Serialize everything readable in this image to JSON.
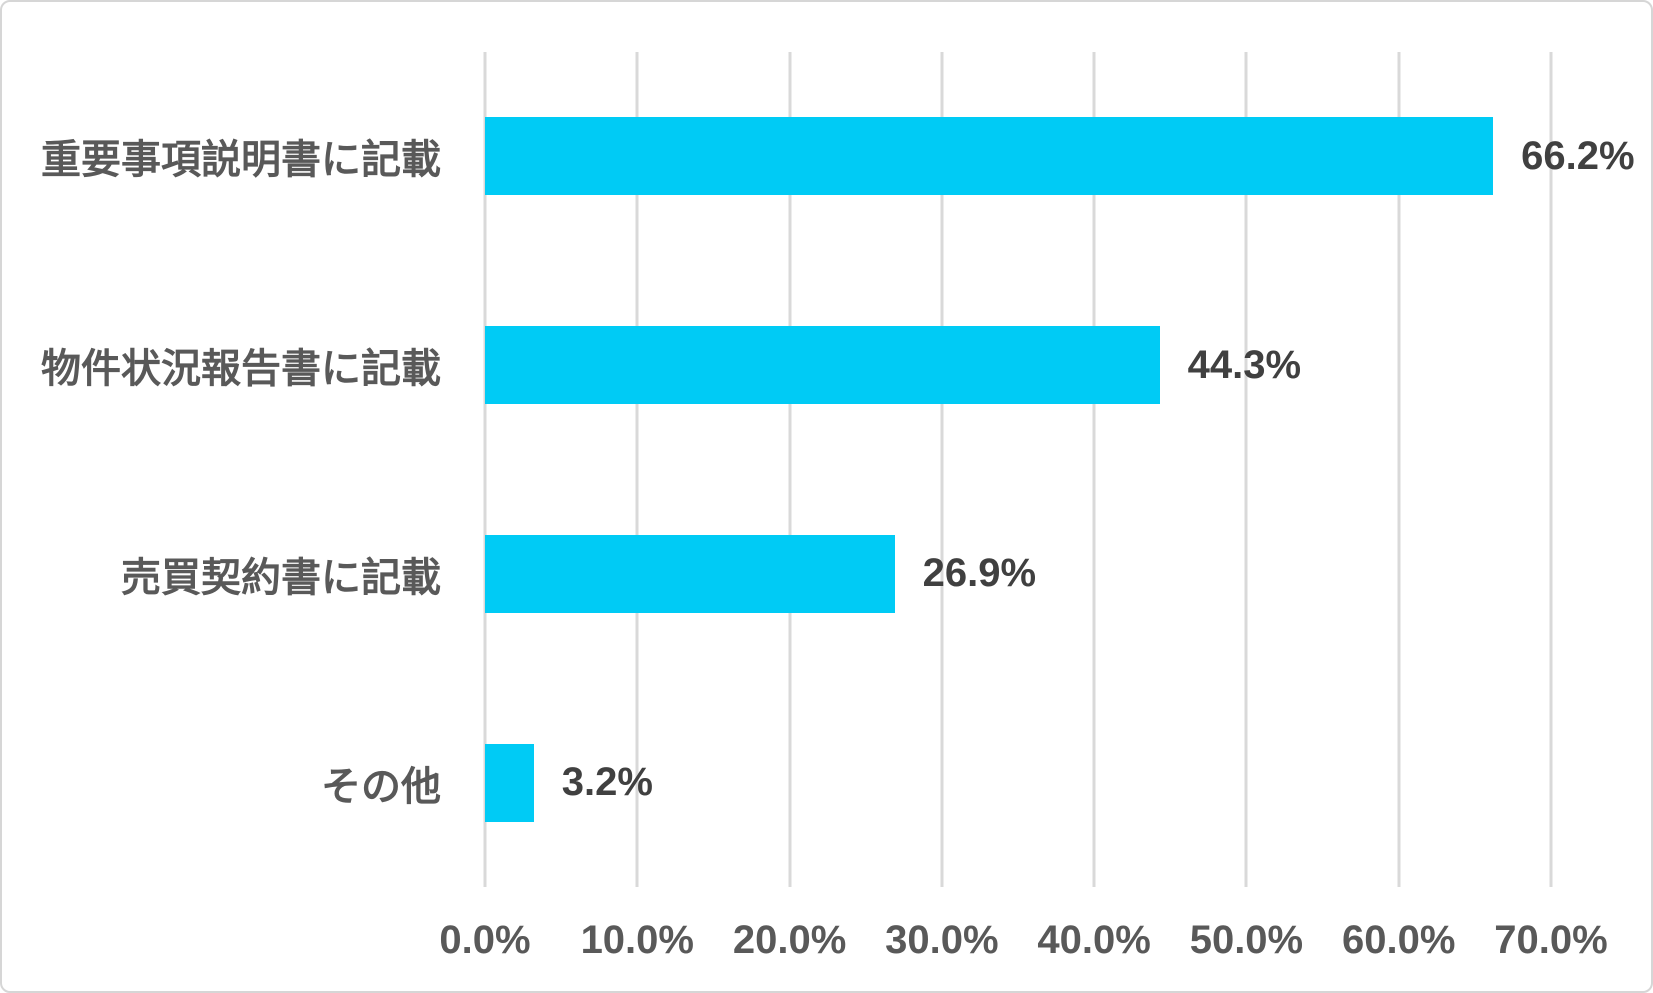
{
  "chart_data": {
    "type": "bar",
    "orientation": "horizontal",
    "title": "",
    "xlabel": "",
    "ylabel": "",
    "categories": [
      "重要事項説明書に記載",
      "物件状況報告書に記載",
      "売買契約書に記載",
      "その他"
    ],
    "values": [
      66.2,
      44.3,
      26.9,
      3.2
    ],
    "value_labels": [
      "66.2%",
      "44.3%",
      "26.9%",
      "3.2%"
    ],
    "x_tick_labels": [
      "0.0%",
      "10.0%",
      "20.0%",
      "30.0%",
      "40.0%",
      "50.0%",
      "60.0%",
      "70.0%"
    ],
    "x_tick_values": [
      0,
      10,
      20,
      30,
      40,
      50,
      60,
      70
    ],
    "xlim": [
      0,
      70
    ],
    "grid": "vertical-only",
    "legend": "none"
  },
  "colors": {
    "bar": "#00cbf5",
    "gridline": "#d9d9d9",
    "category_label": "#595959",
    "tick_label": "#595959",
    "value_label": "#404040",
    "border": "#d6d6d6",
    "background": "#ffffff"
  }
}
